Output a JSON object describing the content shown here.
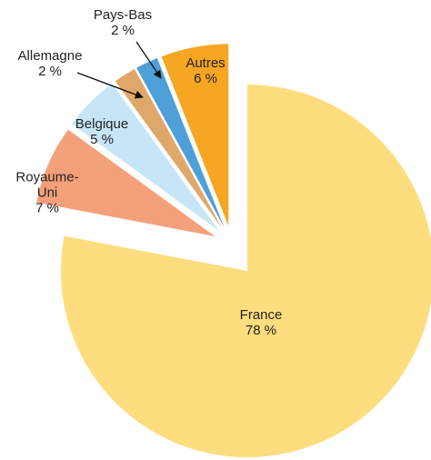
{
  "chart_data": {
    "type": "pie",
    "categories": [
      "France",
      "Royaume-Uni",
      "Belgique",
      "Allemagne",
      "Pays-Bas",
      "Autres"
    ],
    "values": [
      78,
      7,
      5,
      2,
      2,
      6
    ],
    "value_labels": [
      "78 %",
      "7 %",
      "5 %",
      "2 %",
      "2 %",
      "6 %"
    ],
    "colors": [
      "#fedd7e",
      "#f4a07a",
      "#c6e6f7",
      "#dfa86a",
      "#4f9fd8",
      "#f6a623"
    ]
  }
}
